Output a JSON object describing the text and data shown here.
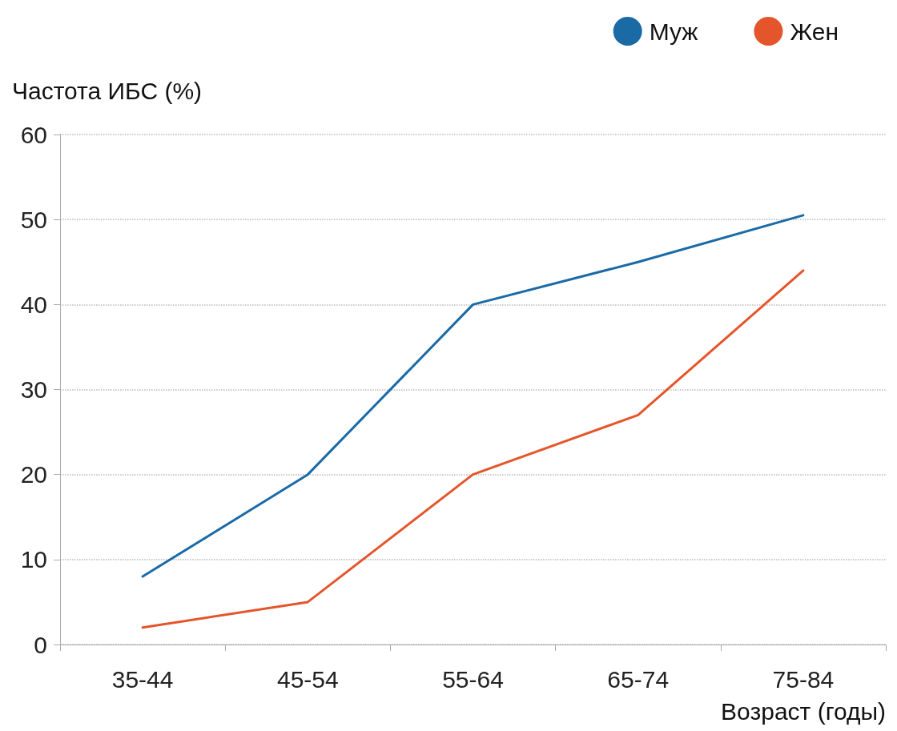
{
  "chart_data": {
    "type": "line",
    "ylabel": "Частота ИБС (%)",
    "xlabel": "Возраст (годы)",
    "categories": [
      "35-44",
      "45-54",
      "55-64",
      "65-74",
      "75-84"
    ],
    "series": [
      {
        "name": "Муж",
        "color": "#1a6aa6",
        "values": [
          8,
          20,
          40,
          45,
          50.5
        ]
      },
      {
        "name": "Жен",
        "color": "#e5552b",
        "values": [
          2,
          5,
          20,
          27,
          44
        ]
      }
    ],
    "ylim": [
      0,
      60
    ],
    "yticks": [
      0,
      10,
      20,
      30,
      40,
      50,
      60
    ],
    "grid": "y",
    "legend": "top right",
    "marker": "none",
    "line_style": "solid"
  }
}
